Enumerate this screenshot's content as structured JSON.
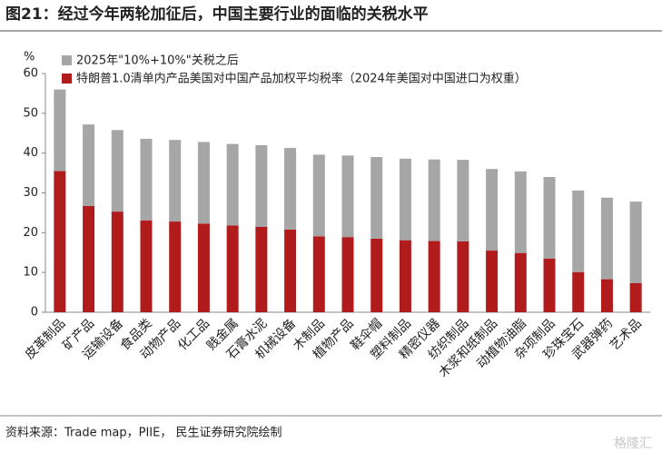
{
  "title": "图21：经过今年两轮加征后，中国主要行业的面临的关税水平",
  "source": "资料来源：Trade map，PIIE， 民生证券研究院绘制",
  "watermark": "格隆汇",
  "chart_data": {
    "type": "stacked_bar",
    "y_unit": "%",
    "categories": [
      "皮革制品",
      "矿产品",
      "运输设备",
      "食品类",
      "动物产品",
      "化工品",
      "贱金属",
      "石膏水泥",
      "机械设备",
      "木制品",
      "植物产品",
      "鞋伞帽",
      "塑料制品",
      "精密仪器",
      "纺织制品",
      "木浆和纸制品",
      "动植物油脂",
      "杂项制品",
      "珍珠宝石",
      "武器弹药",
      "艺术品"
    ],
    "series": [
      {
        "name": "2025年\"10%+10%\"关税之后",
        "color": "#a6a6a6",
        "values": [
          20.5,
          20.5,
          20.5,
          20.5,
          20.5,
          20.5,
          20.5,
          20.5,
          20.5,
          20.5,
          20.5,
          20.5,
          20.5,
          20.5,
          20.5,
          20.5,
          20.5,
          20.5,
          20.5,
          20.5,
          20.5
        ]
      },
      {
        "name": "特朗普1.0清单内产品美国对中国产品加权平均税率（2024年美国对中国进口为权重）",
        "color": "#b01c1c",
        "values": [
          35.5,
          26.7,
          25.3,
          23.1,
          22.8,
          22.3,
          21.8,
          21.5,
          20.8,
          19.1,
          18.9,
          18.5,
          18.1,
          17.9,
          17.8,
          15.5,
          14.9,
          13.5,
          10.1,
          8.3,
          7.3
        ]
      }
    ],
    "ylim": [
      0,
      60
    ],
    "yticks": [
      0,
      10,
      20,
      30,
      40,
      50,
      60
    ],
    "grid": false
  }
}
